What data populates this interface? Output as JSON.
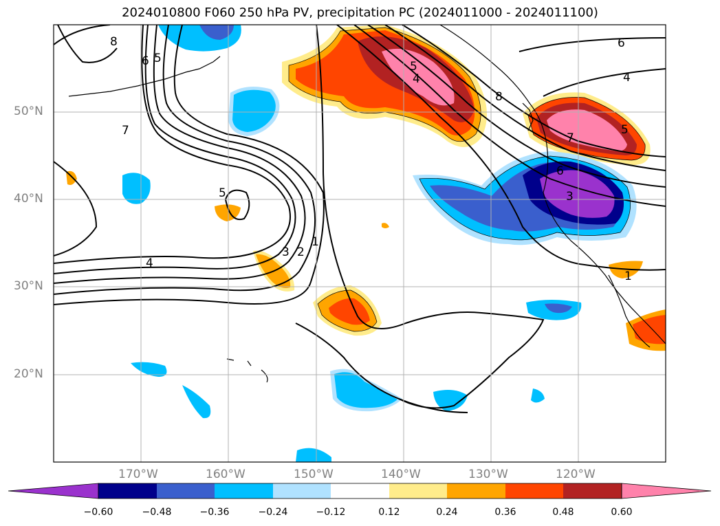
{
  "title": "2024010800 F060 250 hPa PV, precipitation PC (2024011000 - 2024011100)",
  "lat_labels": [
    "50°N",
    "40°N",
    "30°N",
    "20°N"
  ],
  "lon_labels": [
    "170°W",
    "160°W",
    "150°W",
    "140°W",
    "130°W",
    "120°W"
  ],
  "contour_labels": [
    "8",
    "6",
    "5",
    "7",
    "5",
    "4",
    "3",
    "2",
    "1",
    "5",
    "4",
    "8",
    "6",
    "4",
    "5",
    "7",
    "6",
    "3",
    "1"
  ],
  "colorbar": {
    "ticks": [
      "−0.60",
      "−0.48",
      "−0.36",
      "−0.24",
      "−0.12",
      "0.12",
      "0.24",
      "0.36",
      "0.48",
      "0.60"
    ],
    "colors": [
      "#9a32cd",
      "#00008b",
      "#3a5fcd",
      "#00bfff",
      "#b0e2ff",
      "#ffffff",
      "#ffec8b",
      "#ffa500",
      "#ff4500",
      "#b22222",
      "#ff82ab"
    ]
  },
  "map": {
    "extent_lon": [
      -180,
      -110
    ],
    "extent_lat": [
      10,
      60
    ],
    "gridlines": true
  }
}
